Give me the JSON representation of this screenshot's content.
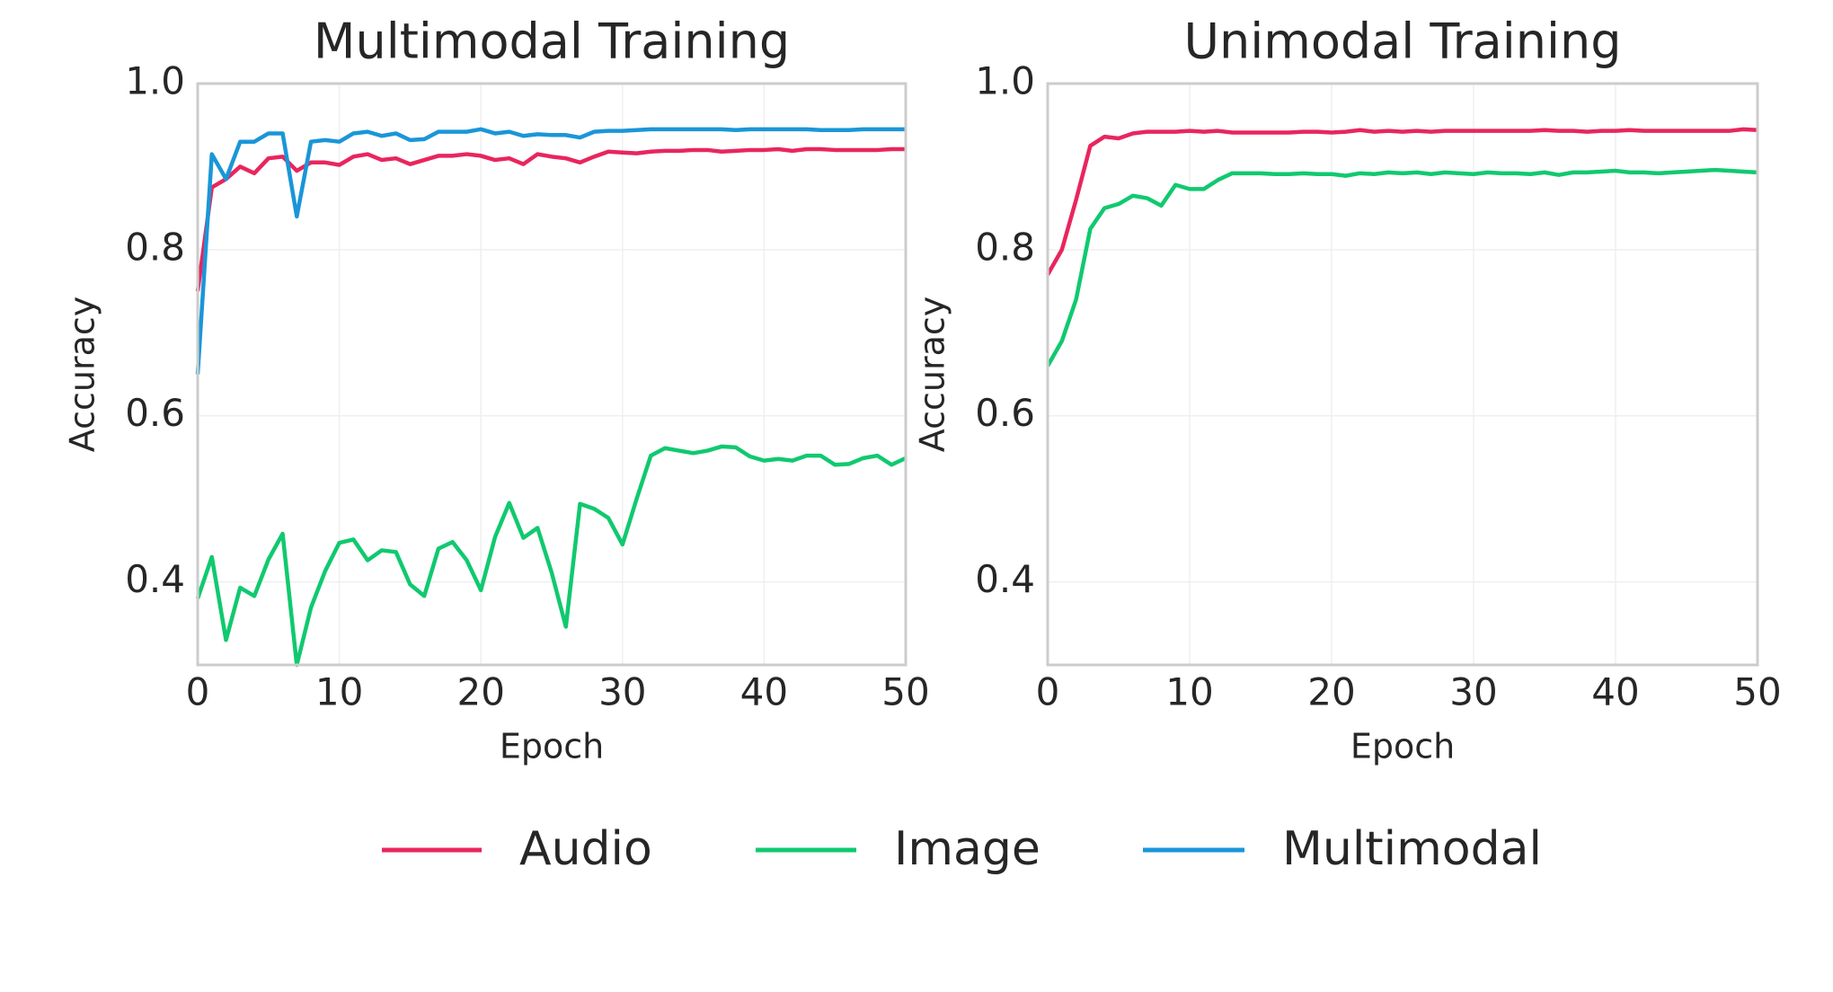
{
  "chart_data": [
    {
      "type": "line",
      "title": "Multimodal Training",
      "x_label": "Epoch",
      "y_label": "Accuracy",
      "x": [
        0,
        1,
        2,
        3,
        4,
        5,
        6,
        7,
        8,
        9,
        10,
        11,
        12,
        13,
        14,
        15,
        16,
        17,
        18,
        19,
        20,
        21,
        22,
        23,
        24,
        25,
        26,
        27,
        28,
        29,
        30,
        31,
        32,
        33,
        34,
        35,
        36,
        37,
        38,
        39,
        40,
        41,
        42,
        43,
        44,
        45,
        46,
        47,
        48,
        49,
        50
      ],
      "xlim": [
        0,
        50
      ],
      "ylim": [
        0.3,
        1.0
      ],
      "xticks": [
        0,
        10,
        20,
        30,
        40,
        50
      ],
      "yticks": [
        0.4,
        0.6,
        0.8,
        {
          "value": 1,
          "label": "1.0"
        }
      ],
      "grid": true,
      "series": [
        {
          "name": "Audio",
          "color": "#e8265e",
          "values": [
            0.75,
            0.875,
            0.885,
            0.9,
            0.892,
            0.91,
            0.912,
            0.895,
            0.905,
            0.905,
            0.902,
            0.912,
            0.915,
            0.908,
            0.91,
            0.903,
            0.908,
            0.913,
            0.913,
            0.915,
            0.913,
            0.908,
            0.91,
            0.903,
            0.915,
            0.912,
            0.91,
            0.905,
            0.912,
            0.918,
            0.917,
            0.916,
            0.918,
            0.919,
            0.919,
            0.92,
            0.92,
            0.918,
            0.919,
            0.92,
            0.92,
            0.921,
            0.919,
            0.921,
            0.921,
            0.92,
            0.92,
            0.92,
            0.92,
            0.921,
            0.921
          ]
        },
        {
          "name": "Image",
          "color": "#10c96f",
          "values": [
            0.38,
            0.43,
            0.33,
            0.393,
            0.383,
            0.427,
            0.458,
            0.3,
            0.369,
            0.413,
            0.447,
            0.451,
            0.426,
            0.438,
            0.436,
            0.397,
            0.383,
            0.44,
            0.448,
            0.426,
            0.39,
            0.454,
            0.495,
            0.453,
            0.465,
            0.411,
            0.346,
            0.494,
            0.488,
            0.477,
            0.445,
            0.5,
            0.552,
            0.561,
            0.558,
            0.555,
            0.558,
            0.563,
            0.562,
            0.551,
            0.546,
            0.548,
            0.546,
            0.552,
            0.552,
            0.541,
            0.542,
            0.549,
            0.552,
            0.541,
            0.549
          ]
        },
        {
          "name": "Multimodal",
          "color": "#1a96d8",
          "values": [
            0.65,
            0.915,
            0.885,
            0.93,
            0.93,
            0.94,
            0.94,
            0.84,
            0.93,
            0.932,
            0.93,
            0.94,
            0.942,
            0.937,
            0.94,
            0.932,
            0.933,
            0.942,
            0.942,
            0.942,
            0.945,
            0.94,
            0.942,
            0.937,
            0.939,
            0.938,
            0.938,
            0.935,
            0.942,
            0.943,
            0.943,
            0.944,
            0.945,
            0.945,
            0.945,
            0.945,
            0.945,
            0.945,
            0.944,
            0.945,
            0.945,
            0.945,
            0.945,
            0.945,
            0.944,
            0.944,
            0.944,
            0.945,
            0.945,
            0.945,
            0.945
          ]
        }
      ]
    },
    {
      "type": "line",
      "title": "Unimodal Training",
      "x_label": "Epoch",
      "y_label": "Accuracy",
      "x": [
        0,
        1,
        2,
        3,
        4,
        5,
        6,
        7,
        8,
        9,
        10,
        11,
        12,
        13,
        14,
        15,
        16,
        17,
        18,
        19,
        20,
        21,
        22,
        23,
        24,
        25,
        26,
        27,
        28,
        29,
        30,
        31,
        32,
        33,
        34,
        35,
        36,
        37,
        38,
        39,
        40,
        41,
        42,
        43,
        44,
        45,
        46,
        47,
        48,
        49,
        50
      ],
      "xlim": [
        0,
        50
      ],
      "ylim": [
        0.3,
        1.0
      ],
      "xticks": [
        0,
        10,
        20,
        30,
        40,
        50
      ],
      "yticks": [
        0.4,
        0.6,
        0.8,
        {
          "value": 1,
          "label": "1.0"
        }
      ],
      "grid": true,
      "series": [
        {
          "name": "Audio",
          "color": "#e8265e",
          "values": [
            0.77,
            0.8,
            0.86,
            0.925,
            0.936,
            0.934,
            0.94,
            0.942,
            0.942,
            0.942,
            0.943,
            0.942,
            0.943,
            0.941,
            0.941,
            0.941,
            0.941,
            0.941,
            0.942,
            0.942,
            0.941,
            0.942,
            0.944,
            0.942,
            0.943,
            0.942,
            0.943,
            0.942,
            0.943,
            0.943,
            0.943,
            0.943,
            0.943,
            0.943,
            0.943,
            0.944,
            0.943,
            0.943,
            0.942,
            0.943,
            0.943,
            0.944,
            0.943,
            0.943,
            0.943,
            0.943,
            0.943,
            0.943,
            0.943,
            0.945,
            0.944
          ]
        },
        {
          "name": "Image",
          "color": "#10c96f",
          "values": [
            0.66,
            0.69,
            0.74,
            0.825,
            0.85,
            0.855,
            0.865,
            0.862,
            0.853,
            0.878,
            0.873,
            0.873,
            0.884,
            0.892,
            0.892,
            0.892,
            0.891,
            0.891,
            0.892,
            0.891,
            0.891,
            0.889,
            0.892,
            0.891,
            0.893,
            0.892,
            0.893,
            0.891,
            0.893,
            0.892,
            0.891,
            0.893,
            0.892,
            0.892,
            0.891,
            0.893,
            0.89,
            0.893,
            0.893,
            0.894,
            0.895,
            0.893,
            0.893,
            0.892,
            0.893,
            0.894,
            0.895,
            0.896,
            0.895,
            0.894,
            0.893
          ]
        }
      ]
    }
  ]
}
